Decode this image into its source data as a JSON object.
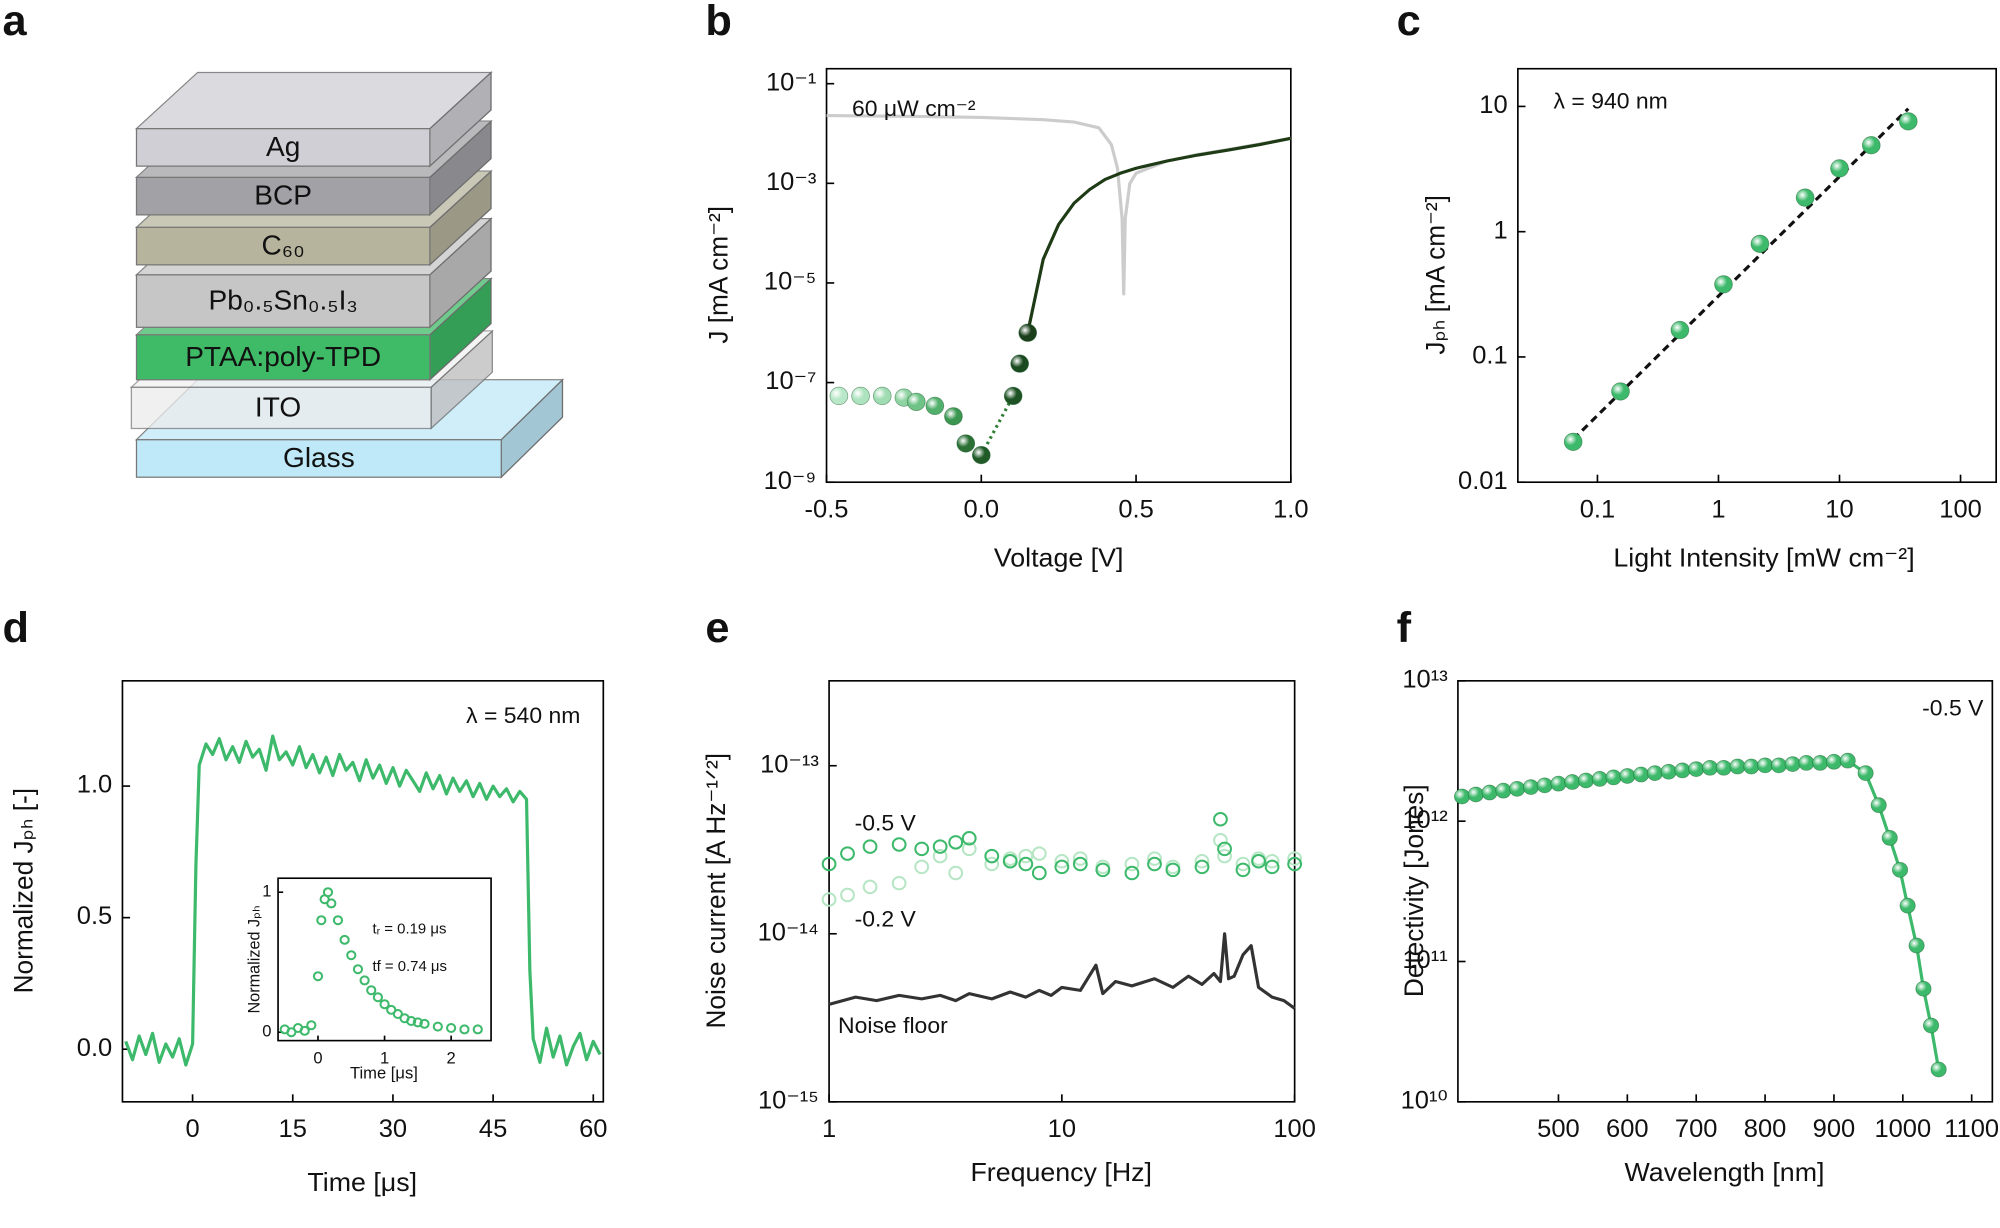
{
  "diagram": {
    "panel": "a",
    "layers": [
      {
        "label": "Ag",
        "color": "#cfcfd5"
      },
      {
        "label": "BCP",
        "color": "#a2a2a6"
      },
      {
        "label": "C₆₀",
        "color": "#b7b49e"
      },
      {
        "label": "Pb₀.₅Sn₀.₅I₃",
        "color": "#c6c6c6"
      },
      {
        "label": "PTAA:poly-TPD",
        "color": "#3fba66"
      },
      {
        "label": "ITO",
        "color": "#ececec"
      },
      {
        "label": "Glass",
        "color": "#bfe9f8"
      }
    ]
  },
  "chart_data": [
    {
      "panel": "b",
      "type": "line",
      "xlabel": "Voltage [V]",
      "ylabel": "J [mA cm⁻²]",
      "ylog": true,
      "xlim": [
        -0.5,
        1.0
      ],
      "ylim": [
        1e-09,
        0.2
      ],
      "xticks": [
        -0.5,
        {
          "value": 0,
          "label": "0.0"
        },
        0.5,
        {
          "value": 1,
          "label": "1.0"
        }
      ],
      "yticks": [
        {
          "value": 1e-09,
          "label": "10⁻⁹"
        },
        {
          "value": 1e-07,
          "label": "10⁻⁷"
        },
        {
          "value": 1e-05,
          "label": "10⁻⁵"
        },
        {
          "value": 0.001,
          "label": "10⁻³"
        },
        {
          "value": 0.1,
          "label": "10⁻¹"
        }
      ],
      "annotations": [
        "60 μW cm⁻²"
      ],
      "series": [
        {
          "style": "line",
          "color": "#cccccc",
          "x": [
            -0.5,
            -0.2,
            0,
            0.2,
            0.3,
            0.38,
            0.42,
            0.44,
            0.455,
            0.46,
            0.465,
            0.48,
            0.5,
            0.6,
            0.7,
            0.8,
            0.9,
            1.0
          ],
          "values": [
            0.023,
            0.022,
            0.021,
            0.019,
            0.017,
            0.013,
            0.006,
            0.002,
            0.0002,
            6e-06,
            0.0002,
            0.001,
            0.0016,
            0.0028,
            0.0038,
            0.0048,
            0.0062,
            0.008
          ]
        },
        {
          "style": "line",
          "color": "#1e3b16",
          "x": [
            0.15,
            0.2,
            0.25,
            0.3,
            0.35,
            0.4,
            0.45,
            0.5,
            0.6,
            0.7,
            0.8,
            0.9,
            1.0
          ],
          "values": [
            1e-06,
            3e-05,
            0.00015,
            0.0004,
            0.00075,
            0.0012,
            0.0016,
            0.002,
            0.0028,
            0.0037,
            0.0047,
            0.006,
            0.008
          ]
        },
        {
          "style": "dotted",
          "color": "#2e7d32",
          "x": [
            0,
            0.103
          ],
          "values": [
            3.5e-09,
            5.4e-08
          ]
        },
        {
          "style": "spheres",
          "x": [
            -0.46,
            -0.39,
            -0.32,
            -0.25,
            -0.21,
            -0.15,
            -0.09,
            -0.05,
            0.0,
            0.103,
            0.124,
            0.15
          ],
          "values": [
            5.4e-08,
            5.4e-08,
            5.4e-08,
            5e-08,
            4.1e-08,
            3.4e-08,
            2.1e-08,
            6e-09,
            3.5e-09,
            5.4e-08,
            2.4e-07,
            1e-06
          ],
          "colors": [
            "#b9e8c8",
            "#aee3bf",
            "#9fdcb2",
            "#8fd3a3",
            "#6fc387",
            "#52b06c",
            "#3a9651",
            "#2b6f35",
            "#1f5a27",
            "#1d5224",
            "#1a4a20",
            "#1b3f1b"
          ]
        }
      ]
    },
    {
      "panel": "c",
      "type": "scatter",
      "xlabel": "Light Intensity [mW cm⁻²]",
      "ylabel": "Jₚₕ [mA cm⁻²]",
      "xlog": true,
      "ylog": true,
      "xlim": [
        0.022,
        197
      ],
      "ylim": [
        0.01,
        20
      ],
      "xticks": [
        0.1,
        1,
        10,
        100
      ],
      "yticks": [
        0.01,
        0.1,
        1,
        10
      ],
      "annotations": [
        "λ = 940 nm"
      ],
      "series": [
        {
          "style": "dashed",
          "color": "#111111",
          "x": [
            0.063,
            37
          ],
          "values": [
            0.022,
            9.6
          ]
        },
        {
          "style": "spheres",
          "color": "#3cb96a",
          "x": [
            0.063,
            0.155,
            0.48,
            1.1,
            2.2,
            5.2,
            10,
            18.3,
            37
          ],
          "values": [
            0.021,
            0.053,
            0.164,
            0.38,
            0.8,
            1.87,
            3.2,
            4.9,
            7.6
          ]
        }
      ]
    },
    {
      "panel": "d",
      "type": "line",
      "xlabel": "Time [μs]",
      "ylabel": "Normalized Jₚₕ [-]",
      "xlim": [
        -10.5,
        61.5
      ],
      "ylim": [
        -0.2,
        1.4
      ],
      "xticks": [
        0,
        15,
        30,
        45,
        60
      ],
      "yticks": [
        {
          "value": 0,
          "label": "0.0"
        },
        0.5,
        {
          "value": 1,
          "label": "1.0"
        }
      ],
      "annotations": [
        "λ = 540 nm"
      ],
      "series": [
        {
          "style": "line",
          "color": "#3cb96a",
          "x": [
            -10,
            -9,
            -8,
            -7,
            -6,
            -5,
            -4,
            -3,
            -2,
            -1,
            0,
            0.5,
            1,
            2,
            3,
            4,
            5,
            6,
            7,
            8,
            9,
            10,
            11,
            12,
            13,
            14,
            15,
            16,
            17,
            18,
            19,
            20,
            21,
            22,
            23,
            24,
            25,
            26,
            27,
            28,
            29,
            30,
            31,
            32,
            33,
            34,
            35,
            36,
            37,
            38,
            39,
            40,
            41,
            42,
            43,
            44,
            45,
            46,
            47,
            48,
            49,
            50,
            50.5,
            51,
            52,
            53,
            54,
            55,
            56,
            57,
            58,
            59,
            60,
            61
          ],
          "values": [
            0.03,
            -0.04,
            0.05,
            -0.02,
            0.06,
            -0.05,
            0.02,
            -0.03,
            0.04,
            -0.06,
            0.02,
            0.7,
            1.08,
            1.16,
            1.12,
            1.18,
            1.1,
            1.15,
            1.09,
            1.17,
            1.11,
            1.14,
            1.06,
            1.19,
            1.1,
            1.13,
            1.08,
            1.15,
            1.07,
            1.12,
            1.05,
            1.11,
            1.04,
            1.12,
            1.06,
            1.09,
            1.02,
            1.1,
            1.03,
            1.08,
            1.01,
            1.07,
            1.0,
            1.06,
            1.02,
            0.98,
            1.05,
            0.99,
            1.04,
            0.97,
            1.03,
            0.98,
            1.02,
            0.96,
            1.01,
            0.95,
            1.0,
            0.96,
            0.99,
            0.94,
            0.98,
            0.95,
            0.3,
            0.04,
            -0.05,
            0.08,
            -0.03,
            0.05,
            -0.06,
            0.01,
            0.06,
            -0.04,
            0.03,
            -0.02
          ]
        }
      ],
      "inset": {
        "xlabel": "Time [μs]",
        "ylabel": "Normalized Jₚₕ",
        "xlim": [
          -0.6,
          2.6
        ],
        "ylim": [
          -0.06,
          1.1
        ],
        "xticks": [
          0,
          1,
          2
        ],
        "yticks": [
          0,
          1
        ],
        "annotations": [
          "tᵣ = 0.19 μs",
          "tf = 0.74 μs"
        ],
        "series": [
          {
            "style": "rings",
            "color": "#3cb96a",
            "x": [
              -0.5,
              -0.4,
              -0.3,
              -0.2,
              -0.1,
              0,
              0.05,
              0.1,
              0.15,
              0.2,
              0.3,
              0.4,
              0.5,
              0.6,
              0.7,
              0.8,
              0.9,
              1.0,
              1.1,
              1.2,
              1.3,
              1.4,
              1.5,
              1.6,
              1.8,
              2.0,
              2.2,
              2.4
            ],
            "values": [
              0.02,
              0.0,
              0.03,
              0.01,
              0.05,
              0.4,
              0.8,
              0.95,
              1.0,
              0.92,
              0.8,
              0.66,
              0.55,
              0.45,
              0.37,
              0.3,
              0.25,
              0.2,
              0.16,
              0.13,
              0.1,
              0.08,
              0.07,
              0.06,
              0.04,
              0.03,
              0.02,
              0.02
            ]
          }
        ]
      }
    },
    {
      "panel": "e",
      "type": "scatter",
      "xlabel": "Frequency [Hz]",
      "ylabel": "Noise current [A Hz⁻¹ᐟ²]",
      "xlog": true,
      "ylog": true,
      "xlim": [
        1,
        100
      ],
      "ylim": [
        1e-15,
        3.2e-13
      ],
      "xticks": [
        1,
        10,
        100
      ],
      "yticks": [
        {
          "value": 1e-15,
          "label": "10⁻¹⁵"
        },
        {
          "value": 1e-14,
          "label": "10⁻¹⁴"
        },
        {
          "value": 1e-13,
          "label": "10⁻¹³"
        }
      ],
      "series": [
        {
          "name": "-0.2 V",
          "style": "rings",
          "color": "#b6e6c4",
          "x": [
            1,
            1.2,
            1.5,
            2,
            2.5,
            3,
            3.5,
            4,
            5,
            6,
            7,
            8,
            10,
            12,
            15,
            20,
            25,
            30,
            40,
            48,
            50,
            60,
            70,
            80,
            100
          ],
          "values": [
            1.6e-14,
            1.7e-14,
            1.9e-14,
            2e-14,
            2.5e-14,
            2.9e-14,
            2.3e-14,
            3.2e-14,
            2.6e-14,
            2.8e-14,
            2.9e-14,
            3e-14,
            2.7e-14,
            2.8e-14,
            2.5e-14,
            2.6e-14,
            2.8e-14,
            2.5e-14,
            2.7e-14,
            3.6e-14,
            2.9e-14,
            2.6e-14,
            2.8e-14,
            2.7e-14,
            2.8e-14
          ]
        },
        {
          "name": "-0.5 V",
          "style": "rings",
          "color": "#3cb96a",
          "x": [
            1,
            1.2,
            1.5,
            2,
            2.5,
            3,
            3.5,
            4,
            5,
            6,
            7,
            8,
            10,
            12,
            15,
            20,
            25,
            30,
            40,
            48,
            50,
            60,
            70,
            80,
            100
          ],
          "values": [
            2.6e-14,
            3e-14,
            3.3e-14,
            3.4e-14,
            3.2e-14,
            3.3e-14,
            3.5e-14,
            3.7e-14,
            2.9e-14,
            2.7e-14,
            2.6e-14,
            2.3e-14,
            2.5e-14,
            2.6e-14,
            2.4e-14,
            2.3e-14,
            2.6e-14,
            2.4e-14,
            2.5e-14,
            4.8e-14,
            3.2e-14,
            2.4e-14,
            2.7e-14,
            2.5e-14,
            2.6e-14
          ]
        },
        {
          "name": "Noise floor",
          "style": "line",
          "color": "#333333",
          "x": [
            1,
            1.3,
            1.6,
            2,
            2.5,
            3,
            3.5,
            4,
            5,
            6,
            7,
            8,
            9,
            10,
            12,
            14,
            15,
            17,
            20,
            25,
            30,
            35,
            40,
            45,
            48,
            50,
            52,
            55,
            60,
            65,
            70,
            80,
            90,
            100
          ],
          "values": [
            3.8e-15,
            4.2e-15,
            4e-15,
            4.3e-15,
            4.1e-15,
            4.3e-15,
            4e-15,
            4.4e-15,
            4.1e-15,
            4.5e-15,
            4.2e-15,
            4.6e-15,
            4.3e-15,
            4.8e-15,
            4.6e-15,
            6.5e-15,
            4.4e-15,
            5.2e-15,
            4.9e-15,
            5.4e-15,
            4.8e-15,
            5.6e-15,
            5e-15,
            5.8e-15,
            5.2e-15,
            1e-14,
            5.4e-15,
            5.6e-15,
            7.5e-15,
            8.5e-15,
            4.8e-15,
            4.2e-15,
            4e-15,
            3.6e-15
          ]
        }
      ]
    },
    {
      "panel": "f",
      "type": "line",
      "xlabel": "Wavelength [nm]",
      "ylabel": "Detectivity [Jones]",
      "ylog": true,
      "xlim": [
        354,
        1130
      ],
      "ylim": [
        10000000000.0,
        10000000000000.0
      ],
      "xticks": [
        500,
        600,
        700,
        800,
        900,
        1000,
        1100
      ],
      "yticks": [
        {
          "value": 10000000000.0,
          "label": "10¹⁰"
        },
        {
          "value": 100000000000.0,
          "label": "10¹¹"
        },
        {
          "value": 1000000000000.0,
          "label": "10¹²"
        },
        {
          "value": 10000000000000.0,
          "label": "10¹³"
        }
      ],
      "annotations": [
        "-0.5 V"
      ],
      "series": [
        {
          "style": "line-spheres",
          "color": "#3cb96a",
          "x": [
            360,
            380,
            400,
            420,
            440,
            460,
            480,
            500,
            520,
            540,
            560,
            580,
            600,
            620,
            640,
            660,
            680,
            700,
            720,
            740,
            760,
            780,
            800,
            820,
            840,
            860,
            880,
            900,
            920,
            946,
            965,
            981,
            996,
            1007,
            1020,
            1030,
            1041,
            1052
          ],
          "values": [
            1500000000000.0,
            1550000000000.0,
            1600000000000.0,
            1650000000000.0,
            1700000000000.0,
            1750000000000.0,
            1800000000000.0,
            1850000000000.0,
            1900000000000.0,
            1950000000000.0,
            2000000000000.0,
            2050000000000.0,
            2100000000000.0,
            2150000000000.0,
            2200000000000.0,
            2250000000000.0,
            2300000000000.0,
            2350000000000.0,
            2400000000000.0,
            2400000000000.0,
            2450000000000.0,
            2450000000000.0,
            2500000000000.0,
            2500000000000.0,
            2550000000000.0,
            2600000000000.0,
            2600000000000.0,
            2650000000000.0,
            2700000000000.0,
            2200000000000.0,
            1300000000000.0,
            760000000000.0,
            450000000000.0,
            250000000000.0,
            130000000000.0,
            64000000000.0,
            35000000000.0,
            17000000000.0
          ]
        }
      ]
    }
  ]
}
